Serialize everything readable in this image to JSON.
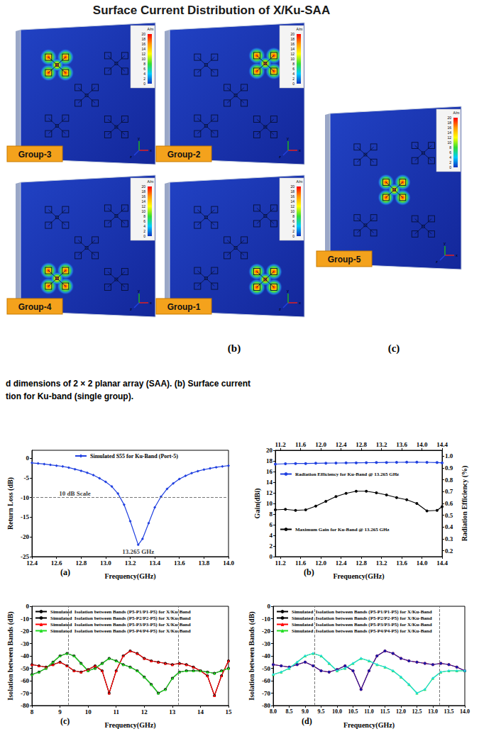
{
  "title": "Surface Current Distribution of X/Ku-SAA",
  "surface_current": {
    "panels": [
      "Group-3",
      "Group-2",
      "Group-4",
      "Group-1",
      "Group-5"
    ],
    "letters": [
      "(b)",
      "(c)"
    ],
    "colorbar": {
      "unit": "A/m",
      "ticks": [
        0,
        2,
        4,
        6,
        8,
        10,
        12,
        14,
        16,
        18,
        20
      ]
    },
    "axes": [
      "x",
      "y",
      "z"
    ]
  },
  "caption": [
    "d dimensions of 2 × 2 planar array (SAA). (b) Surface current",
    "tion for Ku-band (single group)."
  ],
  "chart_data": [
    {
      "type": "line",
      "panel": "(a)",
      "x_label": "Frequency(GHz)",
      "y_label": "Return Loss (dB)",
      "xlim": [
        12.4,
        14.0
      ],
      "xticks": [
        12.4,
        12.6,
        12.8,
        {
          "value": 13,
          "label": "13.0"
        },
        13.2,
        13.4,
        13.6,
        13.8,
        {
          "value": 14,
          "label": "14.0"
        }
      ],
      "ylim": [
        -25,
        2
      ],
      "yticks": [
        -25,
        -20,
        -15,
        -10,
        -5,
        0
      ],
      "grid": false,
      "legend": "upper center",
      "x": [
        12.4,
        12.45,
        12.5,
        12.55,
        12.6,
        12.65,
        12.7,
        12.75,
        12.8,
        12.85,
        12.9,
        12.95,
        13.0,
        13.05,
        13.1,
        13.15,
        13.2,
        13.265,
        13.3,
        13.35,
        13.4,
        13.45,
        13.5,
        13.55,
        13.6,
        13.65,
        13.7,
        13.75,
        13.8,
        13.85,
        13.9,
        13.95,
        14.0
      ],
      "series": [
        {
          "name": "Simulated S55 for Ku-Band (Port-5)",
          "color": "#2040e0",
          "marker": "diamond",
          "values": [
            -1.2,
            -1.35,
            -1.5,
            -1.7,
            -1.9,
            -2.1,
            -2.4,
            -2.8,
            -3.2,
            -3.7,
            -4.3,
            -5.1,
            -6.0,
            -7.2,
            -9.0,
            -11.8,
            -16.0,
            -22.0,
            -20.5,
            -16.5,
            -12.5,
            -9.8,
            -7.8,
            -6.4,
            -5.3,
            -4.5,
            -3.8,
            -3.3,
            -2.9,
            -2.6,
            -2.3,
            -2.1,
            -1.9
          ]
        }
      ],
      "ref_lines": [
        {
          "axis": "y",
          "value": -10,
          "line_style": "dashed"
        }
      ],
      "annotations": [
        {
          "text": "10 dB Scale",
          "x": 12.75,
          "y": -7.2
        },
        {
          "text": "13.265 GHz",
          "x": 13.265,
          "y": -22
        }
      ]
    },
    {
      "type": "line",
      "panel": "(b)",
      "x_label": "Frequency(GHz)",
      "y_label": "Gain(dBi)",
      "y2_label": "Radiation Efficiency (%)",
      "xlim": [
        11.1,
        14.4
      ],
      "xticks": [
        11.2,
        11.6,
        {
          "value": 12,
          "label": "12.0"
        },
        12.4,
        12.8,
        13.2,
        13.6,
        {
          "value": 14,
          "label": "14.0"
        },
        14.4
      ],
      "x2lim": [
        11.1,
        14.4
      ],
      "x2ticks": [
        11.2,
        11.6,
        {
          "value": 12,
          "label": "12.0"
        },
        12.4,
        12.8,
        13.2,
        13.6,
        {
          "value": 14,
          "label": "14.0"
        },
        14.4
      ],
      "ylim": [
        0,
        20
      ],
      "yticks": [
        0,
        2,
        4,
        6,
        8,
        10,
        12,
        14,
        16,
        18,
        20
      ],
      "y2lim": [
        0.15,
        1.05
      ],
      "y2ticks": [
        0.2,
        0.3,
        0.4,
        0.5,
        0.6,
        0.7,
        0.8,
        0.9,
        {
          "value": 1,
          "label": "1.0"
        }
      ],
      "grid": false,
      "legend": "inside",
      "x": [
        11.1,
        11.3,
        11.5,
        11.7,
        11.9,
        12.1,
        12.3,
        12.5,
        12.7,
        12.9,
        13.1,
        13.3,
        13.5,
        13.7,
        13.9,
        14.1,
        14.3,
        14.4
      ],
      "series": [
        {
          "name": "Radiation Efficiency for Ku-Band @ 13.265 GHz",
          "color": "#2040e0",
          "marker": "circle",
          "axis": "y2",
          "values": [
            0.933,
            0.936,
            0.938,
            0.938,
            0.94,
            0.941,
            0.942,
            0.943,
            0.944,
            0.945,
            0.946,
            0.947,
            0.948,
            0.949,
            0.949,
            0.948,
            0.946,
            0.944
          ]
        },
        {
          "name": "Maximum Gain for Ku-Band @ 13.265 GHz",
          "color": "#000000",
          "marker": "circle",
          "values": [
            8.8,
            8.9,
            8.7,
            8.8,
            9.5,
            10.4,
            11.3,
            11.9,
            12.3,
            12.3,
            12.0,
            11.6,
            11.1,
            10.7,
            10.0,
            8.6,
            8.7,
            9.4
          ]
        }
      ]
    },
    {
      "type": "line",
      "panel": "(c)",
      "x_label": "Frequency(GHz)",
      "y_label": "Isolation between Bands (dB)",
      "xlim": [
        8,
        15
      ],
      "xticks": [
        8,
        9,
        10,
        11,
        12,
        13,
        14,
        15
      ],
      "ylim": [
        -80,
        0
      ],
      "yticks": [
        -80,
        -70,
        -60,
        -50,
        -40,
        -30,
        -20,
        -10,
        0
      ],
      "grid": false,
      "legend": "upper left",
      "x": [
        8,
        8.25,
        8.5,
        8.75,
        9,
        9.25,
        9.5,
        9.75,
        10,
        10.25,
        10.5,
        10.75,
        11,
        11.25,
        11.5,
        11.75,
        12,
        12.25,
        12.5,
        12.75,
        13,
        13.25,
        13.5,
        13.75,
        14,
        14.25,
        14.5,
        14.75,
        15
      ],
      "series": [
        {
          "name": "Simulated  Isolation between Bands (P5-P1/P1-P5) for X/Ku-Band",
          "color": "#000000",
          "marker": "circle",
          "values": [
            -47,
            -48,
            -49,
            -47,
            -45,
            -48,
            -52,
            -53,
            -51,
            -48,
            -52,
            -70,
            -52,
            -40,
            -36,
            -38,
            -42,
            -44,
            -45,
            -46,
            -47,
            -46,
            -47,
            -49,
            -52,
            -56,
            -72,
            -56,
            -44
          ]
        },
        {
          "name": "Simulated  Isolation between Bands (P5-P2/P2-P5) for X/Ku-Band",
          "color": "#000000",
          "marker": "circle",
          "values": [
            -55,
            -53,
            -50,
            -45,
            -40,
            -38,
            -40,
            -46,
            -52,
            -50,
            -46,
            -42,
            -44,
            -47,
            -49,
            -52,
            -57,
            -63,
            -70,
            -67,
            -58,
            -53,
            -52,
            -52,
            -52,
            -53,
            -54,
            -52,
            -50
          ]
        },
        {
          "name": "Simulated  Isolation between Bands (P5-P3/P3-P5) for X/Ku-Band",
          "color": "#ff0000",
          "marker": "triangle",
          "values": [
            -47,
            -48,
            -49,
            -47,
            -45,
            -48,
            -52,
            -53,
            -51,
            -48,
            -52,
            -70,
            -52,
            -40,
            -36,
            -38,
            -42,
            -44,
            -45,
            -46,
            -47,
            -46,
            -47,
            -49,
            -52,
            -56,
            -72,
            -56,
            -44
          ]
        },
        {
          "name": "Simulated  Isolation between Bands (P5-P4/P4-P5) for X/Ku-Band",
          "color": "#22dd22",
          "marker": "triangle",
          "values": [
            -55,
            -53,
            -50,
            -45,
            -40,
            -38,
            -40,
            -46,
            -52,
            -50,
            -46,
            -42,
            -44,
            -47,
            -49,
            -52,
            -57,
            -63,
            -70,
            -67,
            -58,
            -53,
            -52,
            -52,
            -52,
            -53,
            -54,
            -52,
            -50
          ]
        }
      ],
      "ref_lines": [
        {
          "axis": "x",
          "value": 9.3,
          "line_style": "dashed"
        },
        {
          "axis": "x",
          "value": 13.2,
          "line_style": "dashed"
        }
      ]
    },
    {
      "type": "line",
      "panel": "(d)",
      "x_label": "Frequency(GHz)",
      "y_label": "Isolation between Bands (dB)",
      "xlim": [
        8,
        14
      ],
      "xticks": [
        {
          "value": 8,
          "label": "8.0"
        },
        8.5,
        {
          "value": 9,
          "label": "9.0"
        },
        9.5,
        {
          "value": 10,
          "label": "10.0"
        },
        10.5,
        {
          "value": 11,
          "label": "11.0"
        },
        11.5,
        {
          "value": 12,
          "label": "12.0"
        },
        12.5,
        {
          "value": 13,
          "label": "13.0"
        },
        13.5,
        {
          "value": 14,
          "label": "14.0"
        }
      ],
      "ylim": [
        -80,
        0
      ],
      "yticks": [
        -80,
        -70,
        -60,
        -50,
        -40,
        -30,
        -20,
        -10,
        0
      ],
      "grid": false,
      "legend": "upper left",
      "x": [
        8,
        8.25,
        8.5,
        8.75,
        9,
        9.25,
        9.5,
        9.75,
        10,
        10.25,
        10.5,
        10.75,
        11,
        11.25,
        11.5,
        11.75,
        12,
        12.25,
        12.5,
        12.75,
        13,
        13.25,
        13.5,
        13.75,
        14
      ],
      "series": [
        {
          "name": "Simulated  Isolation between Bands (P5-P1/P1-P5) for X/Ku-Band",
          "color": "#ff0000",
          "marker": "circle",
          "values": [
            -47,
            -48,
            -49,
            -47,
            -45,
            -48,
            -52,
            -53,
            -51,
            -48,
            -52,
            -67,
            -52,
            -40,
            -36,
            -38,
            -42,
            -44,
            -45,
            -46,
            -47,
            -46,
            -47,
            -49,
            -52
          ]
        },
        {
          "name": "Simulated  Isolation between Bands (P5-P2/P2-P5) for X/Ku-Band",
          "color": "#22dd22",
          "marker": "triangle",
          "values": [
            -55,
            -53,
            -50,
            -45,
            -40,
            -38,
            -40,
            -46,
            -52,
            -50,
            -46,
            -42,
            -44,
            -47,
            -49,
            -52,
            -57,
            -63,
            -70,
            -67,
            -58,
            -53,
            -52,
            -52,
            -52
          ]
        },
        {
          "name": "Simulated  Isolation between Bands (P5-P3/P3-P5) for X/Ku-Band",
          "color": "#1a1aa8",
          "marker": "circle",
          "values": [
            -47,
            -48,
            -49,
            -47,
            -45,
            -48,
            -52,
            -53,
            -51,
            -48,
            -52,
            -67,
            -52,
            -40,
            -36,
            -38,
            -42,
            -44,
            -45,
            -46,
            -47,
            -46,
            -47,
            -49,
            -52
          ]
        },
        {
          "name": "Simulated  Isolation between Bands (P5-P4/P4-P5) for X/Ku-Band",
          "color": "#22dddd",
          "marker": "diamond",
          "values": [
            -55,
            -53,
            -50,
            -45,
            -40,
            -38,
            -40,
            -46,
            -52,
            -50,
            -46,
            -42,
            -44,
            -47,
            -49,
            -52,
            -57,
            -63,
            -70,
            -67,
            -58,
            -53,
            -52,
            -52,
            -52
          ]
        }
      ],
      "ref_lines": [
        {
          "axis": "x",
          "value": 9.3,
          "line_style": "dashed"
        },
        {
          "axis": "x",
          "value": 13.2,
          "line_style": "dashed"
        }
      ]
    }
  ]
}
